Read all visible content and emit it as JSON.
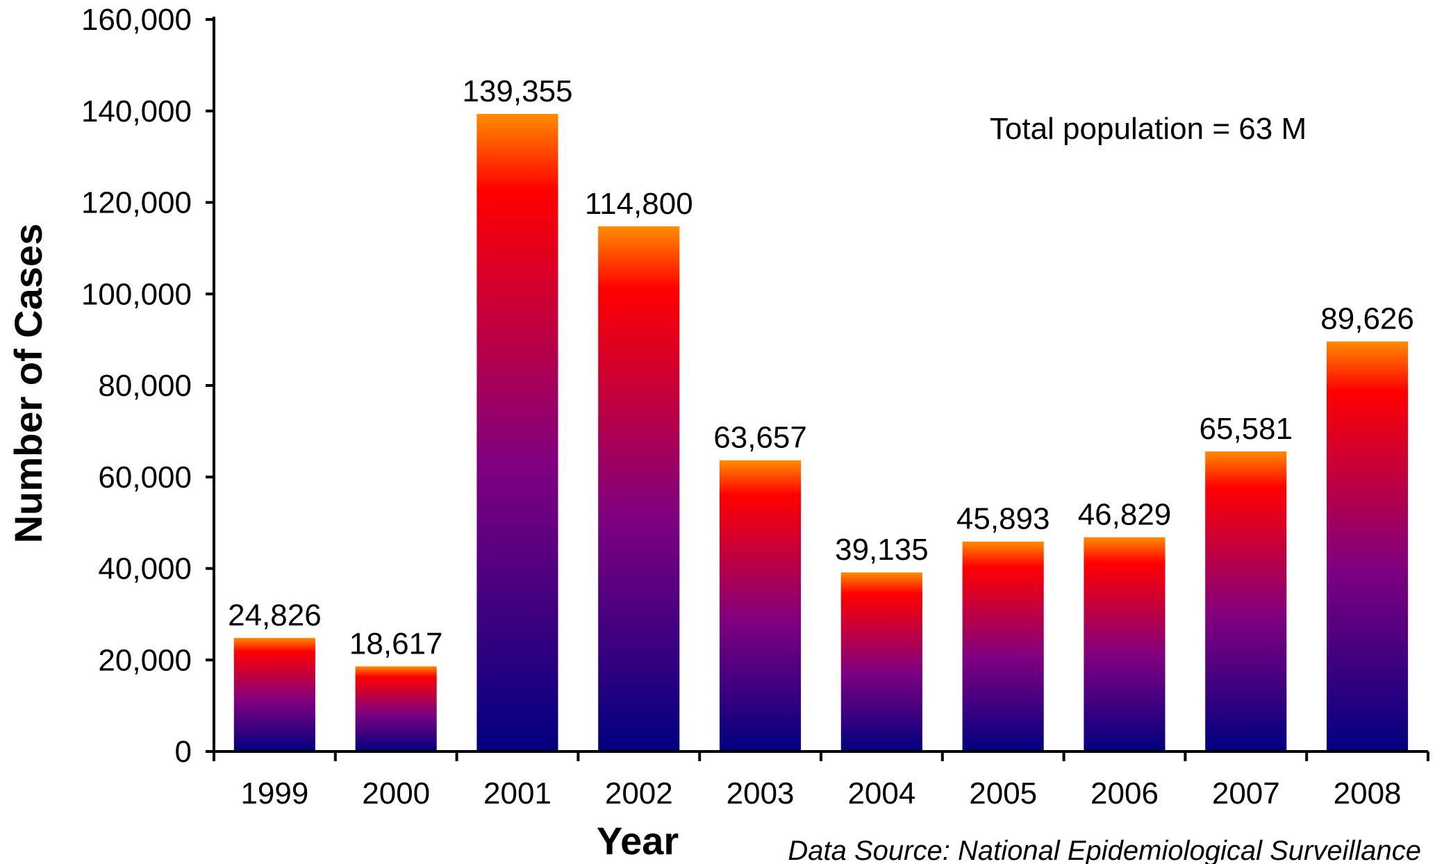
{
  "chart_data": {
    "type": "bar",
    "categories": [
      "1999",
      "2000",
      "2001",
      "2002",
      "2003",
      "2004",
      "2005",
      "2006",
      "2007",
      "2008"
    ],
    "values": [
      24826,
      18617,
      139355,
      114800,
      63657,
      39135,
      45893,
      46829,
      65581,
      89626
    ],
    "data_labels": [
      "24,826",
      "18,617",
      "139,355",
      "114,800",
      "63,657",
      "39,135",
      "45,893",
      "46,829",
      "65,581",
      "89,626"
    ],
    "title": "",
    "xlabel": "Year",
    "ylabel": "Number of Cases",
    "ylim": [
      0,
      160000
    ],
    "yticks": [
      0,
      20000,
      40000,
      60000,
      80000,
      100000,
      120000,
      140000,
      160000
    ],
    "ytick_labels": [
      "0",
      "20,000",
      "40,000",
      "60,000",
      "80,000",
      "100,000",
      "120,000",
      "140,000",
      "160,000"
    ],
    "grid": false,
    "legend": "none",
    "annotation": "Total population = 63 M",
    "source": "Data Source:  National Epidemiological Surveillance",
    "bar_gradient": {
      "top": "#ff8c00",
      "upper": "#ff0000",
      "lower": "#800080",
      "bottom": "#000080"
    }
  }
}
